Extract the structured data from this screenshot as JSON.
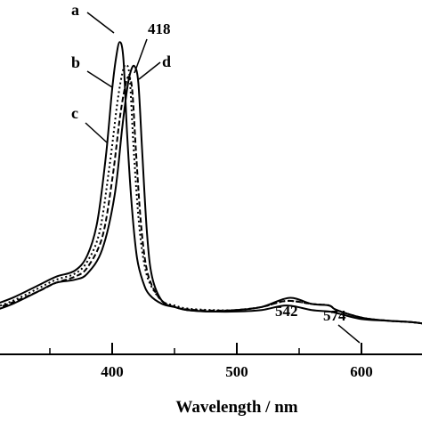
{
  "chart_data": {
    "type": "line",
    "title": "",
    "xlabel": "Wavelength / nm",
    "ylabel": "",
    "xlim": [
      300,
      650
    ],
    "ylim": [
      0,
      1.0
    ],
    "x_ticks": [
      400,
      500,
      600
    ],
    "x_tick_labels": [
      "400",
      "500",
      "600"
    ],
    "grid": false,
    "legend": "none",
    "series": [
      {
        "name": "a",
        "style": "solid",
        "x": [
          300,
          320,
          340,
          355,
          370,
          380,
          388,
          395,
          400,
          403,
          406,
          409,
          412,
          416,
          420,
          425,
          430,
          440,
          450,
          460,
          480,
          500,
          520,
          540,
          560,
          574,
          580,
          600,
          620,
          640,
          650
        ],
        "y": [
          0.08,
          0.11,
          0.15,
          0.18,
          0.2,
          0.25,
          0.36,
          0.58,
          0.8,
          0.9,
          0.955,
          0.9,
          0.65,
          0.4,
          0.24,
          0.16,
          0.12,
          0.09,
          0.08,
          0.07,
          0.065,
          0.065,
          0.07,
          0.085,
          0.07,
          0.065,
          0.06,
          0.04,
          0.035,
          0.03,
          0.025
        ]
      },
      {
        "name": "b",
        "style": "dotted",
        "x": [
          300,
          320,
          340,
          355,
          370,
          380,
          390,
          398,
          404,
          408,
          411,
          414,
          417,
          421,
          425,
          430,
          440,
          450,
          460,
          480,
          500,
          520,
          540,
          560,
          574,
          580,
          600,
          620,
          640,
          650
        ],
        "y": [
          0.07,
          0.1,
          0.14,
          0.17,
          0.19,
          0.23,
          0.33,
          0.55,
          0.75,
          0.85,
          0.88,
          0.84,
          0.62,
          0.38,
          0.24,
          0.16,
          0.1,
          0.085,
          0.075,
          0.07,
          0.07,
          0.08,
          0.1,
          0.09,
          0.085,
          0.07,
          0.045,
          0.035,
          0.03,
          0.025
        ]
      },
      {
        "name": "c",
        "style": "dashed",
        "x": [
          300,
          320,
          340,
          355,
          370,
          380,
          392,
          400,
          406,
          410,
          413,
          416,
          419,
          423,
          427,
          432,
          440,
          450,
          460,
          480,
          500,
          520,
          540,
          560,
          574,
          580,
          600,
          620,
          640,
          650
        ],
        "y": [
          0.065,
          0.095,
          0.13,
          0.16,
          0.18,
          0.21,
          0.31,
          0.5,
          0.7,
          0.8,
          0.84,
          0.8,
          0.6,
          0.36,
          0.22,
          0.15,
          0.1,
          0.08,
          0.072,
          0.068,
          0.07,
          0.08,
          0.1,
          0.09,
          0.085,
          0.07,
          0.045,
          0.035,
          0.03,
          0.025
        ]
      },
      {
        "name": "d",
        "style": "solid",
        "x": [
          300,
          320,
          340,
          355,
          370,
          380,
          392,
          402,
          408,
          412,
          415,
          418,
          421,
          424,
          428,
          432,
          440,
          450,
          460,
          480,
          500,
          520,
          542,
          560,
          574,
          580,
          600,
          620,
          640,
          650
        ],
        "y": [
          0.06,
          0.09,
          0.13,
          0.16,
          0.17,
          0.19,
          0.27,
          0.45,
          0.67,
          0.8,
          0.86,
          0.875,
          0.82,
          0.6,
          0.32,
          0.18,
          0.1,
          0.08,
          0.07,
          0.065,
          0.07,
          0.08,
          0.11,
          0.09,
          0.085,
          0.07,
          0.045,
          0.035,
          0.03,
          0.025
        ]
      }
    ],
    "annotations": [
      {
        "text": "418",
        "x": 418
      },
      {
        "text": "542",
        "x": 542
      },
      {
        "text": "574",
        "x": 574
      }
    ]
  }
}
